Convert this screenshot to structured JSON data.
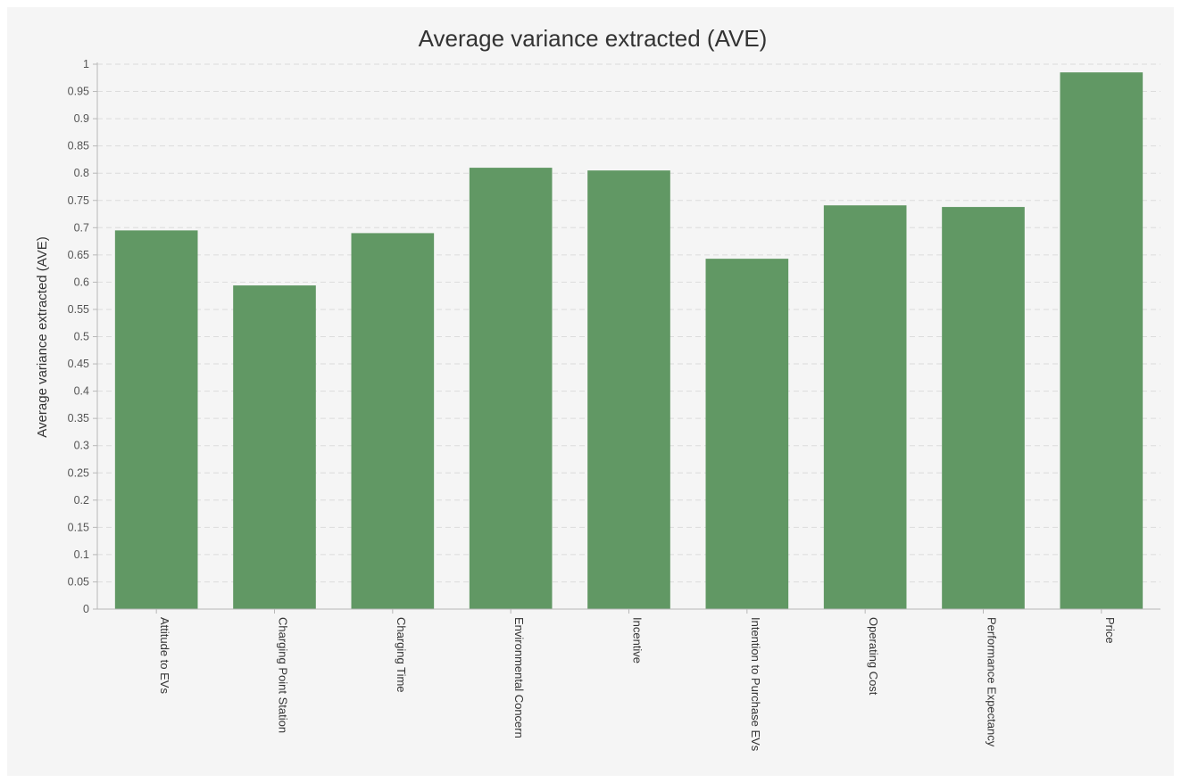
{
  "chart_data": {
    "type": "bar",
    "title": "Average variance extracted (AVE)",
    "xlabel": "",
    "ylabel": "Average variance extracted (AVE)",
    "ylim": [
      0,
      1
    ],
    "ytick_step": 0.05,
    "yticks": [
      "0",
      "0.05",
      "0.1",
      "0.15",
      "0.2",
      "0.25",
      "0.3",
      "0.35",
      "0.4",
      "0.45",
      "0.5",
      "0.55",
      "0.6",
      "0.65",
      "0.7",
      "0.75",
      "0.8",
      "0.85",
      "0.9",
      "0.95",
      "1"
    ],
    "grid": true,
    "legend": "none",
    "bar_color": "#619864",
    "categories": [
      "Attitude to EVs",
      "Charging Point Station",
      "Charging Time",
      "Environmental Concern",
      "Incentive",
      "Intention to Purchase EVs",
      "Operating Cost",
      "Performance Expectancy",
      "Price"
    ],
    "values": [
      0.695,
      0.594,
      0.69,
      0.81,
      0.805,
      0.643,
      0.741,
      0.738,
      0.985
    ]
  }
}
